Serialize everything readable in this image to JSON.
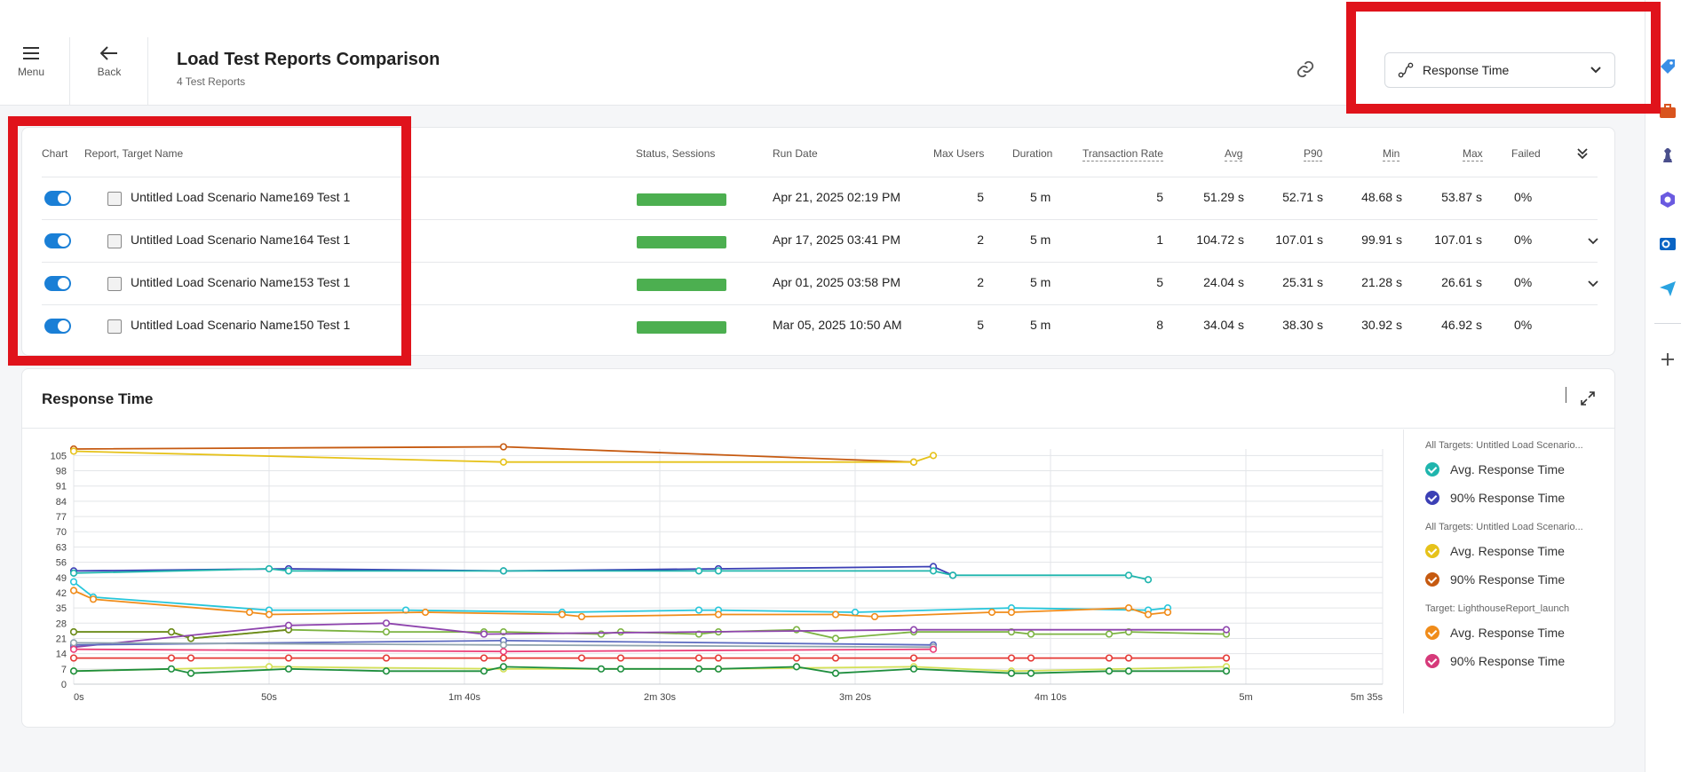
{
  "header": {
    "menu_label": "Menu",
    "back_label": "Back",
    "title": "Load Test Reports Comparison",
    "subtitle": "4 Test Reports",
    "metric_selected": "Response Time"
  },
  "table": {
    "columns": {
      "chart": "Chart",
      "report": "Report, Target Name",
      "status": "Status, Sessions",
      "run_date": "Run Date",
      "max_users": "Max Users",
      "duration": "Duration",
      "transaction_rate": "Transaction Rate",
      "avg": "Avg",
      "p90": "P90",
      "min": "Min",
      "max": "Max",
      "failed": "Failed"
    },
    "rows": [
      {
        "name": "Untitled Load Scenario Name169 Test 1",
        "run_date": "Apr 21, 2025 02:19 PM",
        "max_users": "5",
        "duration": "5 m",
        "transaction_rate": "5",
        "avg": "51.29 s",
        "p90": "52.71 s",
        "min": "48.68 s",
        "max": "53.87 s",
        "failed": "0%",
        "expandable": false
      },
      {
        "name": "Untitled Load Scenario Name164 Test 1",
        "run_date": "Apr 17, 2025 03:41 PM",
        "max_users": "2",
        "duration": "5 m",
        "transaction_rate": "1",
        "avg": "104.72 s",
        "p90": "107.01 s",
        "min": "99.91 s",
        "max": "107.01 s",
        "failed": "0%",
        "expandable": true
      },
      {
        "name": "Untitled Load Scenario Name153 Test 1",
        "run_date": "Apr 01, 2025 03:58 PM",
        "max_users": "2",
        "duration": "5 m",
        "transaction_rate": "5",
        "avg": "24.04 s",
        "p90": "25.31 s",
        "min": "21.28 s",
        "max": "26.61 s",
        "failed": "0%",
        "expandable": true
      },
      {
        "name": "Untitled Load Scenario Name150 Test 1",
        "run_date": "Mar 05, 2025 10:50 AM",
        "max_users": "5",
        "duration": "5 m",
        "transaction_rate": "8",
        "avg": "34.04 s",
        "p90": "38.30 s",
        "min": "30.92 s",
        "max": "46.92 s",
        "failed": "0%",
        "expandable": false
      }
    ]
  },
  "chart_section": {
    "title": "Response Time",
    "legend_groups": [
      {
        "label": "All Targets: Untitled Load Scenario...",
        "items": [
          {
            "label": "Avg. Response Time",
            "color": "#1fb5ad"
          },
          {
            "label": "90% Response Time",
            "color": "#3b3fb5"
          }
        ]
      },
      {
        "label": "All Targets: Untitled Load Scenario...",
        "items": [
          {
            "label": "Avg. Response Time",
            "color": "#e6c21a"
          },
          {
            "label": "90% Response Time",
            "color": "#c65a10"
          }
        ]
      },
      {
        "label": "Target: LighthouseReport_launch",
        "items": [
          {
            "label": "Avg. Response Time",
            "color": "#f08c1a"
          },
          {
            "label": "90% Response Time",
            "color": "#d63a7a"
          }
        ]
      }
    ]
  },
  "chart_data": {
    "type": "line",
    "ylim": [
      0,
      108
    ],
    "xlim": [
      0,
      335
    ],
    "yticks": [
      "0",
      "7",
      "14",
      "21",
      "28",
      "35",
      "42",
      "49",
      "56",
      "63",
      "70",
      "77",
      "84",
      "91",
      "98",
      "105"
    ],
    "xticks": [
      {
        "v": 0,
        "label": "0s"
      },
      {
        "v": 50,
        "label": "50s"
      },
      {
        "v": 100,
        "label": "1m 40s"
      },
      {
        "v": 150,
        "label": "2m 30s"
      },
      {
        "v": 200,
        "label": "3m 20s"
      },
      {
        "v": 250,
        "label": "4m 10s"
      },
      {
        "v": 300,
        "label": "5m"
      },
      {
        "v": 335,
        "label": "5m 35s"
      }
    ],
    "series": [
      {
        "color": "#c65a10",
        "points": [
          [
            0,
            108
          ],
          [
            110,
            109
          ],
          [
            215,
            102
          ]
        ]
      },
      {
        "color": "#e6c21a",
        "points": [
          [
            0,
            107
          ],
          [
            110,
            102
          ],
          [
            215,
            102
          ],
          [
            220,
            105
          ]
        ]
      },
      {
        "color": "#3b3fb5",
        "points": [
          [
            0,
            52
          ],
          [
            55,
            53
          ],
          [
            110,
            52
          ],
          [
            165,
            53
          ],
          [
            220,
            54
          ],
          [
            225,
            50
          ]
        ]
      },
      {
        "color": "#1fb5ad",
        "points": [
          [
            0,
            51
          ],
          [
            50,
            53
          ],
          [
            55,
            52
          ],
          [
            110,
            52
          ],
          [
            160,
            52
          ],
          [
            165,
            52
          ],
          [
            220,
            52
          ],
          [
            225,
            50
          ],
          [
            270,
            50
          ],
          [
            275,
            48
          ]
        ]
      },
      {
        "color": "#26c6da",
        "points": [
          [
            0,
            47
          ],
          [
            5,
            40
          ],
          [
            50,
            34
          ],
          [
            85,
            34
          ],
          [
            125,
            33
          ],
          [
            160,
            34
          ],
          [
            165,
            34
          ],
          [
            200,
            33
          ],
          [
            240,
            35
          ],
          [
            275,
            34
          ],
          [
            280,
            35
          ]
        ]
      },
      {
        "color": "#f08c1a",
        "points": [
          [
            0,
            43
          ],
          [
            5,
            39
          ],
          [
            45,
            33
          ],
          [
            50,
            32
          ],
          [
            90,
            33
          ],
          [
            125,
            32
          ],
          [
            130,
            31
          ],
          [
            165,
            32
          ],
          [
            195,
            32
          ],
          [
            205,
            31
          ],
          [
            235,
            33
          ],
          [
            240,
            33
          ],
          [
            270,
            35
          ],
          [
            275,
            32
          ],
          [
            280,
            33
          ]
        ]
      },
      {
        "color": "#7cb342",
        "points": [
          [
            0,
            24
          ],
          [
            25,
            24
          ],
          [
            30,
            21
          ],
          [
            55,
            25
          ],
          [
            80,
            24
          ],
          [
            105,
            24
          ],
          [
            110,
            24
          ],
          [
            135,
            23
          ],
          [
            140,
            24
          ],
          [
            160,
            23
          ],
          [
            165,
            24
          ],
          [
            185,
            25
          ],
          [
            195,
            21
          ],
          [
            215,
            24
          ],
          [
            240,
            24
          ],
          [
            245,
            23
          ],
          [
            265,
            23
          ],
          [
            270,
            24
          ],
          [
            295,
            23
          ]
        ]
      },
      {
        "color": "#6d8b1a",
        "points": [
          [
            0,
            24
          ],
          [
            25,
            24
          ],
          [
            30,
            21
          ],
          [
            55,
            25
          ]
        ]
      },
      {
        "color": "#8e44ad",
        "points": [
          [
            0,
            17
          ],
          [
            55,
            27
          ],
          [
            80,
            28
          ],
          [
            105,
            23
          ],
          [
            215,
            25
          ],
          [
            295,
            25
          ]
        ]
      },
      {
        "color": "#5c6bc0",
        "points": [
          [
            0,
            18
          ],
          [
            110,
            20
          ],
          [
            220,
            18
          ]
        ]
      },
      {
        "color": "#90a4ae",
        "points": [
          [
            0,
            19
          ],
          [
            110,
            18
          ],
          [
            220,
            17
          ]
        ]
      },
      {
        "color": "#ec407a",
        "points": [
          [
            0,
            16
          ],
          [
            110,
            15
          ],
          [
            220,
            16
          ]
        ]
      },
      {
        "color": "#e53935",
        "points": [
          [
            0,
            12
          ],
          [
            25,
            12
          ],
          [
            30,
            12
          ],
          [
            55,
            12
          ],
          [
            80,
            12
          ],
          [
            105,
            12
          ],
          [
            110,
            12
          ],
          [
            130,
            12
          ],
          [
            140,
            12
          ],
          [
            160,
            12
          ],
          [
            165,
            12
          ],
          [
            185,
            12
          ],
          [
            195,
            12
          ],
          [
            215,
            12
          ],
          [
            240,
            12
          ],
          [
            245,
            12
          ],
          [
            265,
            12
          ],
          [
            270,
            12
          ],
          [
            295,
            12
          ]
        ]
      },
      {
        "color": "#d4e157",
        "points": [
          [
            0,
            6
          ],
          [
            50,
            8
          ],
          [
            110,
            7
          ],
          [
            165,
            7
          ],
          [
            215,
            8
          ],
          [
            240,
            6
          ],
          [
            295,
            8
          ]
        ]
      },
      {
        "color": "#1e8e3e",
        "points": [
          [
            0,
            6
          ],
          [
            25,
            7
          ],
          [
            30,
            5
          ],
          [
            55,
            7
          ],
          [
            80,
            6
          ],
          [
            105,
            6
          ],
          [
            110,
            8
          ],
          [
            135,
            7
          ],
          [
            140,
            7
          ],
          [
            160,
            7
          ],
          [
            165,
            7
          ],
          [
            185,
            8
          ],
          [
            195,
            5
          ],
          [
            215,
            7
          ],
          [
            240,
            5
          ],
          [
            245,
            5
          ],
          [
            265,
            6
          ],
          [
            270,
            6
          ],
          [
            295,
            6
          ]
        ]
      }
    ]
  }
}
